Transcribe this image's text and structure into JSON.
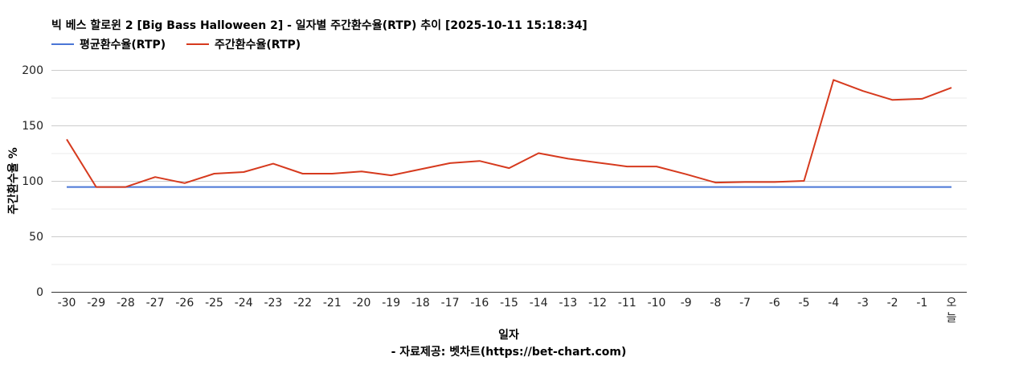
{
  "chart_data": {
    "type": "line",
    "title": "빅 베스 할로윈 2 [Big Bass Halloween 2] - 일자별 주간환수율(RTP) 추이 [2025-10-11 15:18:34]",
    "xlabel": "일자",
    "ylabel": "주간환수율 %",
    "caption": "- 자료제공: 벳차트(https://bet-chart.com)",
    "categories": [
      "-30",
      "-29",
      "-28",
      "-27",
      "-26",
      "-25",
      "-24",
      "-23",
      "-22",
      "-21",
      "-20",
      "-19",
      "-18",
      "-17",
      "-16",
      "-15",
      "-14",
      "-13",
      "-12",
      "-11",
      "-10",
      "-9",
      "-8",
      "-7",
      "-6",
      "-5",
      "-4",
      "-3",
      "-2",
      "-1",
      "오늘"
    ],
    "ylim": [
      0,
      200
    ],
    "yticks": [
      "0",
      "50",
      "100",
      "150",
      "200"
    ],
    "grid": true,
    "legend_position": "top-left",
    "series": [
      {
        "name": "평균환수율(RTP)",
        "color": "#4a76d6",
        "values": [
          94.5,
          94.5,
          94.5,
          94.5,
          94.5,
          94.5,
          94.5,
          94.5,
          94.5,
          94.5,
          94.5,
          94.5,
          94.5,
          94.5,
          94.5,
          94.5,
          94.5,
          94.5,
          94.5,
          94.5,
          94.5,
          94.5,
          94.5,
          94.5,
          94.5,
          94.5,
          94.5,
          94.5,
          94.5,
          94.5,
          94.5
        ]
      },
      {
        "name": "주간환수율(RTP)",
        "color": "#d63a1e",
        "values": [
          137.5,
          94.5,
          94.5,
          103.5,
          98,
          106.5,
          108,
          115.5,
          106.5,
          106.5,
          108.5,
          105,
          110.5,
          116,
          118,
          111.5,
          125,
          120,
          116.5,
          113,
          113,
          106,
          98.5,
          99,
          99,
          100,
          191,
          181,
          173,
          174,
          184
        ]
      }
    ]
  }
}
